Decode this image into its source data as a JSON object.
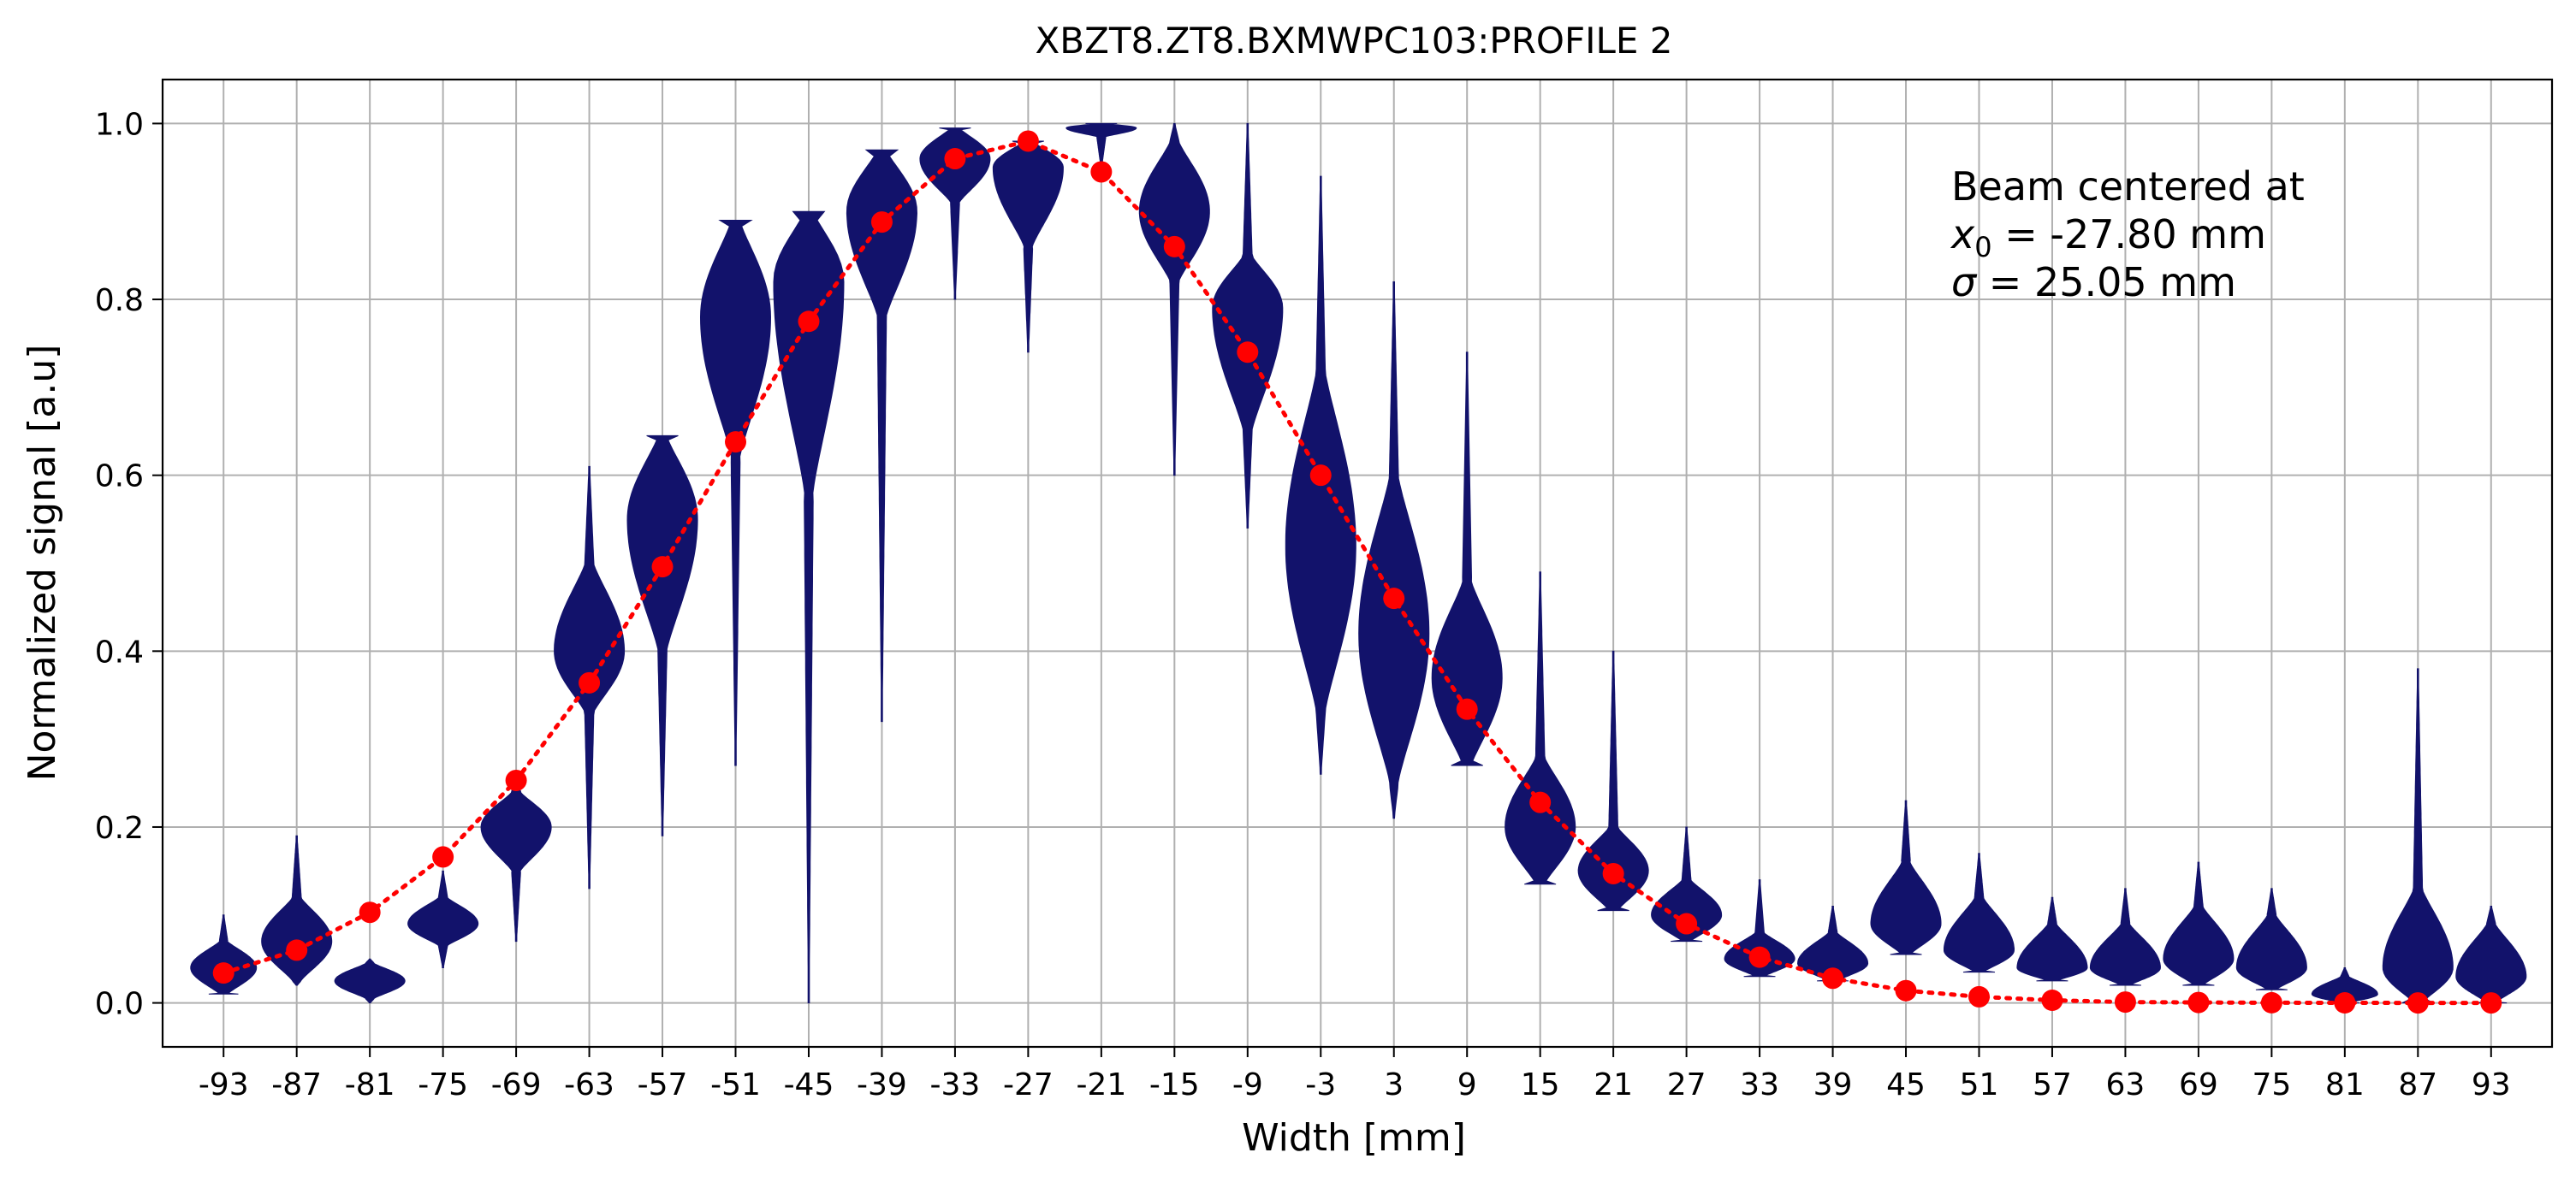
{
  "chart_data": {
    "type": "violin",
    "title": "XBZT8.ZT8.BXMWPC103:PROFILE 2",
    "xlabel": "Width [mm]",
    "ylabel": "Normalized signal [a.u]",
    "ylim": [
      -0.05,
      1.05
    ],
    "yticks": [
      0.0,
      0.2,
      0.4,
      0.6,
      0.8,
      1.0
    ],
    "ytick_labels": [
      "0.0",
      "0.2",
      "0.4",
      "0.6",
      "0.8",
      "1.0"
    ],
    "grid": true,
    "x": [
      -93,
      -87,
      -81,
      -75,
      -69,
      -63,
      -57,
      -51,
      -45,
      -39,
      -33,
      -27,
      -21,
      -15,
      -9,
      -3,
      3,
      9,
      15,
      21,
      27,
      33,
      39,
      45,
      51,
      57,
      63,
      69,
      75,
      81,
      87,
      93
    ],
    "xtick_labels": [
      "-93",
      "-87",
      "-81",
      "-75",
      "-69",
      "-63",
      "-57",
      "-51",
      "-45",
      "-39",
      "-33",
      "-27",
      "-21",
      "-15",
      "-9",
      "-3",
      "3",
      "9",
      "15",
      "21",
      "27",
      "33",
      "39",
      "45",
      "51",
      "57",
      "63",
      "69",
      "75",
      "81",
      "87",
      "93"
    ],
    "violins": [
      {
        "x": -93,
        "min": 0.01,
        "max": 0.1,
        "mode": 0.04,
        "bulk_low": 0.01,
        "bulk_high": 0.07,
        "width": 0.45
      },
      {
        "x": -87,
        "min": 0.02,
        "max": 0.19,
        "mode": 0.07,
        "bulk_low": 0.025,
        "bulk_high": 0.12,
        "width": 0.48
      },
      {
        "x": -81,
        "min": 0.0,
        "max": 0.05,
        "mode": 0.025,
        "bulk_low": 0.005,
        "bulk_high": 0.045,
        "width": 0.48
      },
      {
        "x": -75,
        "min": 0.04,
        "max": 0.15,
        "mode": 0.09,
        "bulk_low": 0.065,
        "bulk_high": 0.12,
        "width": 0.48
      },
      {
        "x": -69,
        "min": 0.07,
        "max": 0.26,
        "mode": 0.2,
        "bulk_low": 0.15,
        "bulk_high": 0.24,
        "width": 0.48
      },
      {
        "x": -63,
        "min": 0.13,
        "max": 0.61,
        "mode": 0.4,
        "bulk_low": 0.33,
        "bulk_high": 0.5,
        "width": 0.48
      },
      {
        "x": -57,
        "min": 0.19,
        "max": 0.645,
        "mode": 0.55,
        "bulk_low": 0.4,
        "bulk_high": 0.645,
        "width": 0.48
      },
      {
        "x": -51,
        "min": 0.27,
        "max": 0.89,
        "mode": 0.78,
        "bulk_low": 0.62,
        "bulk_high": 0.89,
        "width": 0.48
      },
      {
        "x": -45,
        "min": 0.0,
        "max": 0.9,
        "mode": 0.82,
        "bulk_low": 0.58,
        "bulk_high": 0.9,
        "width": 0.48
      },
      {
        "x": -39,
        "min": 0.32,
        "max": 0.97,
        "mode": 0.9,
        "bulk_low": 0.78,
        "bulk_high": 0.97,
        "width": 0.48
      },
      {
        "x": -33,
        "min": 0.8,
        "max": 0.995,
        "mode": 0.96,
        "bulk_low": 0.91,
        "bulk_high": 0.995,
        "width": 0.48
      },
      {
        "x": -27,
        "min": 0.74,
        "max": 0.98,
        "mode": 0.95,
        "bulk_low": 0.86,
        "bulk_high": 0.98,
        "width": 0.48
      },
      {
        "x": -21,
        "min": 0.95,
        "max": 1.0,
        "mode": 0.995,
        "bulk_low": 0.985,
        "bulk_high": 1.0,
        "width": 0.48
      },
      {
        "x": -15,
        "min": 0.6,
        "max": 1.0,
        "mode": 0.9,
        "bulk_low": 0.82,
        "bulk_high": 0.98,
        "width": 0.48
      },
      {
        "x": -9,
        "min": 0.54,
        "max": 1.0,
        "mode": 0.79,
        "bulk_low": 0.65,
        "bulk_high": 0.85,
        "width": 0.48
      },
      {
        "x": -3,
        "min": 0.26,
        "max": 0.94,
        "mode": 0.52,
        "bulk_low": 0.33,
        "bulk_high": 0.72,
        "width": 0.48
      },
      {
        "x": 3,
        "min": 0.21,
        "max": 0.82,
        "mode": 0.42,
        "bulk_low": 0.25,
        "bulk_high": 0.6,
        "width": 0.48
      },
      {
        "x": 9,
        "min": 0.27,
        "max": 0.74,
        "mode": 0.37,
        "bulk_low": 0.27,
        "bulk_high": 0.48,
        "width": 0.48
      },
      {
        "x": 15,
        "min": 0.135,
        "max": 0.49,
        "mode": 0.2,
        "bulk_low": 0.135,
        "bulk_high": 0.28,
        "width": 0.48
      },
      {
        "x": 21,
        "min": 0.105,
        "max": 0.4,
        "mode": 0.15,
        "bulk_low": 0.105,
        "bulk_high": 0.2,
        "width": 0.48
      },
      {
        "x": 27,
        "min": 0.07,
        "max": 0.2,
        "mode": 0.1,
        "bulk_low": 0.07,
        "bulk_high": 0.14,
        "width": 0.48
      },
      {
        "x": 33,
        "min": 0.03,
        "max": 0.14,
        "mode": 0.05,
        "bulk_low": 0.03,
        "bulk_high": 0.08,
        "width": 0.48
      },
      {
        "x": 39,
        "min": 0.025,
        "max": 0.11,
        "mode": 0.045,
        "bulk_low": 0.025,
        "bulk_high": 0.08,
        "width": 0.48
      },
      {
        "x": 45,
        "min": 0.055,
        "max": 0.23,
        "mode": 0.09,
        "bulk_low": 0.055,
        "bulk_high": 0.16,
        "width": 0.48
      },
      {
        "x": 51,
        "min": 0.035,
        "max": 0.17,
        "mode": 0.06,
        "bulk_low": 0.035,
        "bulk_high": 0.12,
        "width": 0.48
      },
      {
        "x": 57,
        "min": 0.025,
        "max": 0.12,
        "mode": 0.04,
        "bulk_low": 0.025,
        "bulk_high": 0.09,
        "width": 0.48
      },
      {
        "x": 63,
        "min": 0.02,
        "max": 0.13,
        "mode": 0.04,
        "bulk_low": 0.02,
        "bulk_high": 0.09,
        "width": 0.48
      },
      {
        "x": 69,
        "min": 0.02,
        "max": 0.16,
        "mode": 0.05,
        "bulk_low": 0.02,
        "bulk_high": 0.11,
        "width": 0.48
      },
      {
        "x": 75,
        "min": 0.015,
        "max": 0.13,
        "mode": 0.04,
        "bulk_low": 0.015,
        "bulk_high": 0.1,
        "width": 0.48
      },
      {
        "x": 81,
        "min": 0.0,
        "max": 0.04,
        "mode": 0.01,
        "bulk_low": 0.0,
        "bulk_high": 0.03,
        "width": 0.45
      },
      {
        "x": 87,
        "min": 0.0,
        "max": 0.38,
        "mode": 0.04,
        "bulk_low": 0.0,
        "bulk_high": 0.13,
        "width": 0.48
      },
      {
        "x": 93,
        "min": 0.0,
        "max": 0.11,
        "mode": 0.03,
        "bulk_low": 0.0,
        "bulk_high": 0.09,
        "width": 0.48
      }
    ],
    "series": [
      {
        "x": [
          -93,
          -87,
          -81,
          -75,
          -69,
          -63,
          -57,
          -51,
          -45,
          -39,
          -33,
          -27,
          -21,
          -15,
          -9,
          -3,
          3,
          9,
          15,
          21,
          27,
          33,
          39,
          45,
          51,
          57,
          63,
          69,
          75,
          81,
          87,
          93
        ],
        "values": [
          0.034,
          0.06,
          0.103,
          0.166,
          0.253,
          0.364,
          0.496,
          0.638,
          0.775,
          0.888,
          0.96,
          0.98,
          0.945,
          0.86,
          0.74,
          0.6,
          0.46,
          0.334,
          0.228,
          0.147,
          0.09,
          0.052,
          0.028,
          0.014,
          0.007,
          0.003,
          0.001,
          0.0005,
          0.0002,
          0.0001,
          0.0,
          0.0
        ],
        "color": "#ff0000",
        "style": "dotted-with-markers"
      }
    ],
    "colors": {
      "violin": "#12126b",
      "fit": "#ff0000",
      "grid": "#b0b0b0"
    },
    "annotation": {
      "line1": "Beam centered at",
      "line2_symbol": "x",
      "line2_sub": "0",
      "line2_text": " = -27.80 mm",
      "line3_symbol": "σ",
      "line3_text": " = 25.05 mm"
    }
  }
}
